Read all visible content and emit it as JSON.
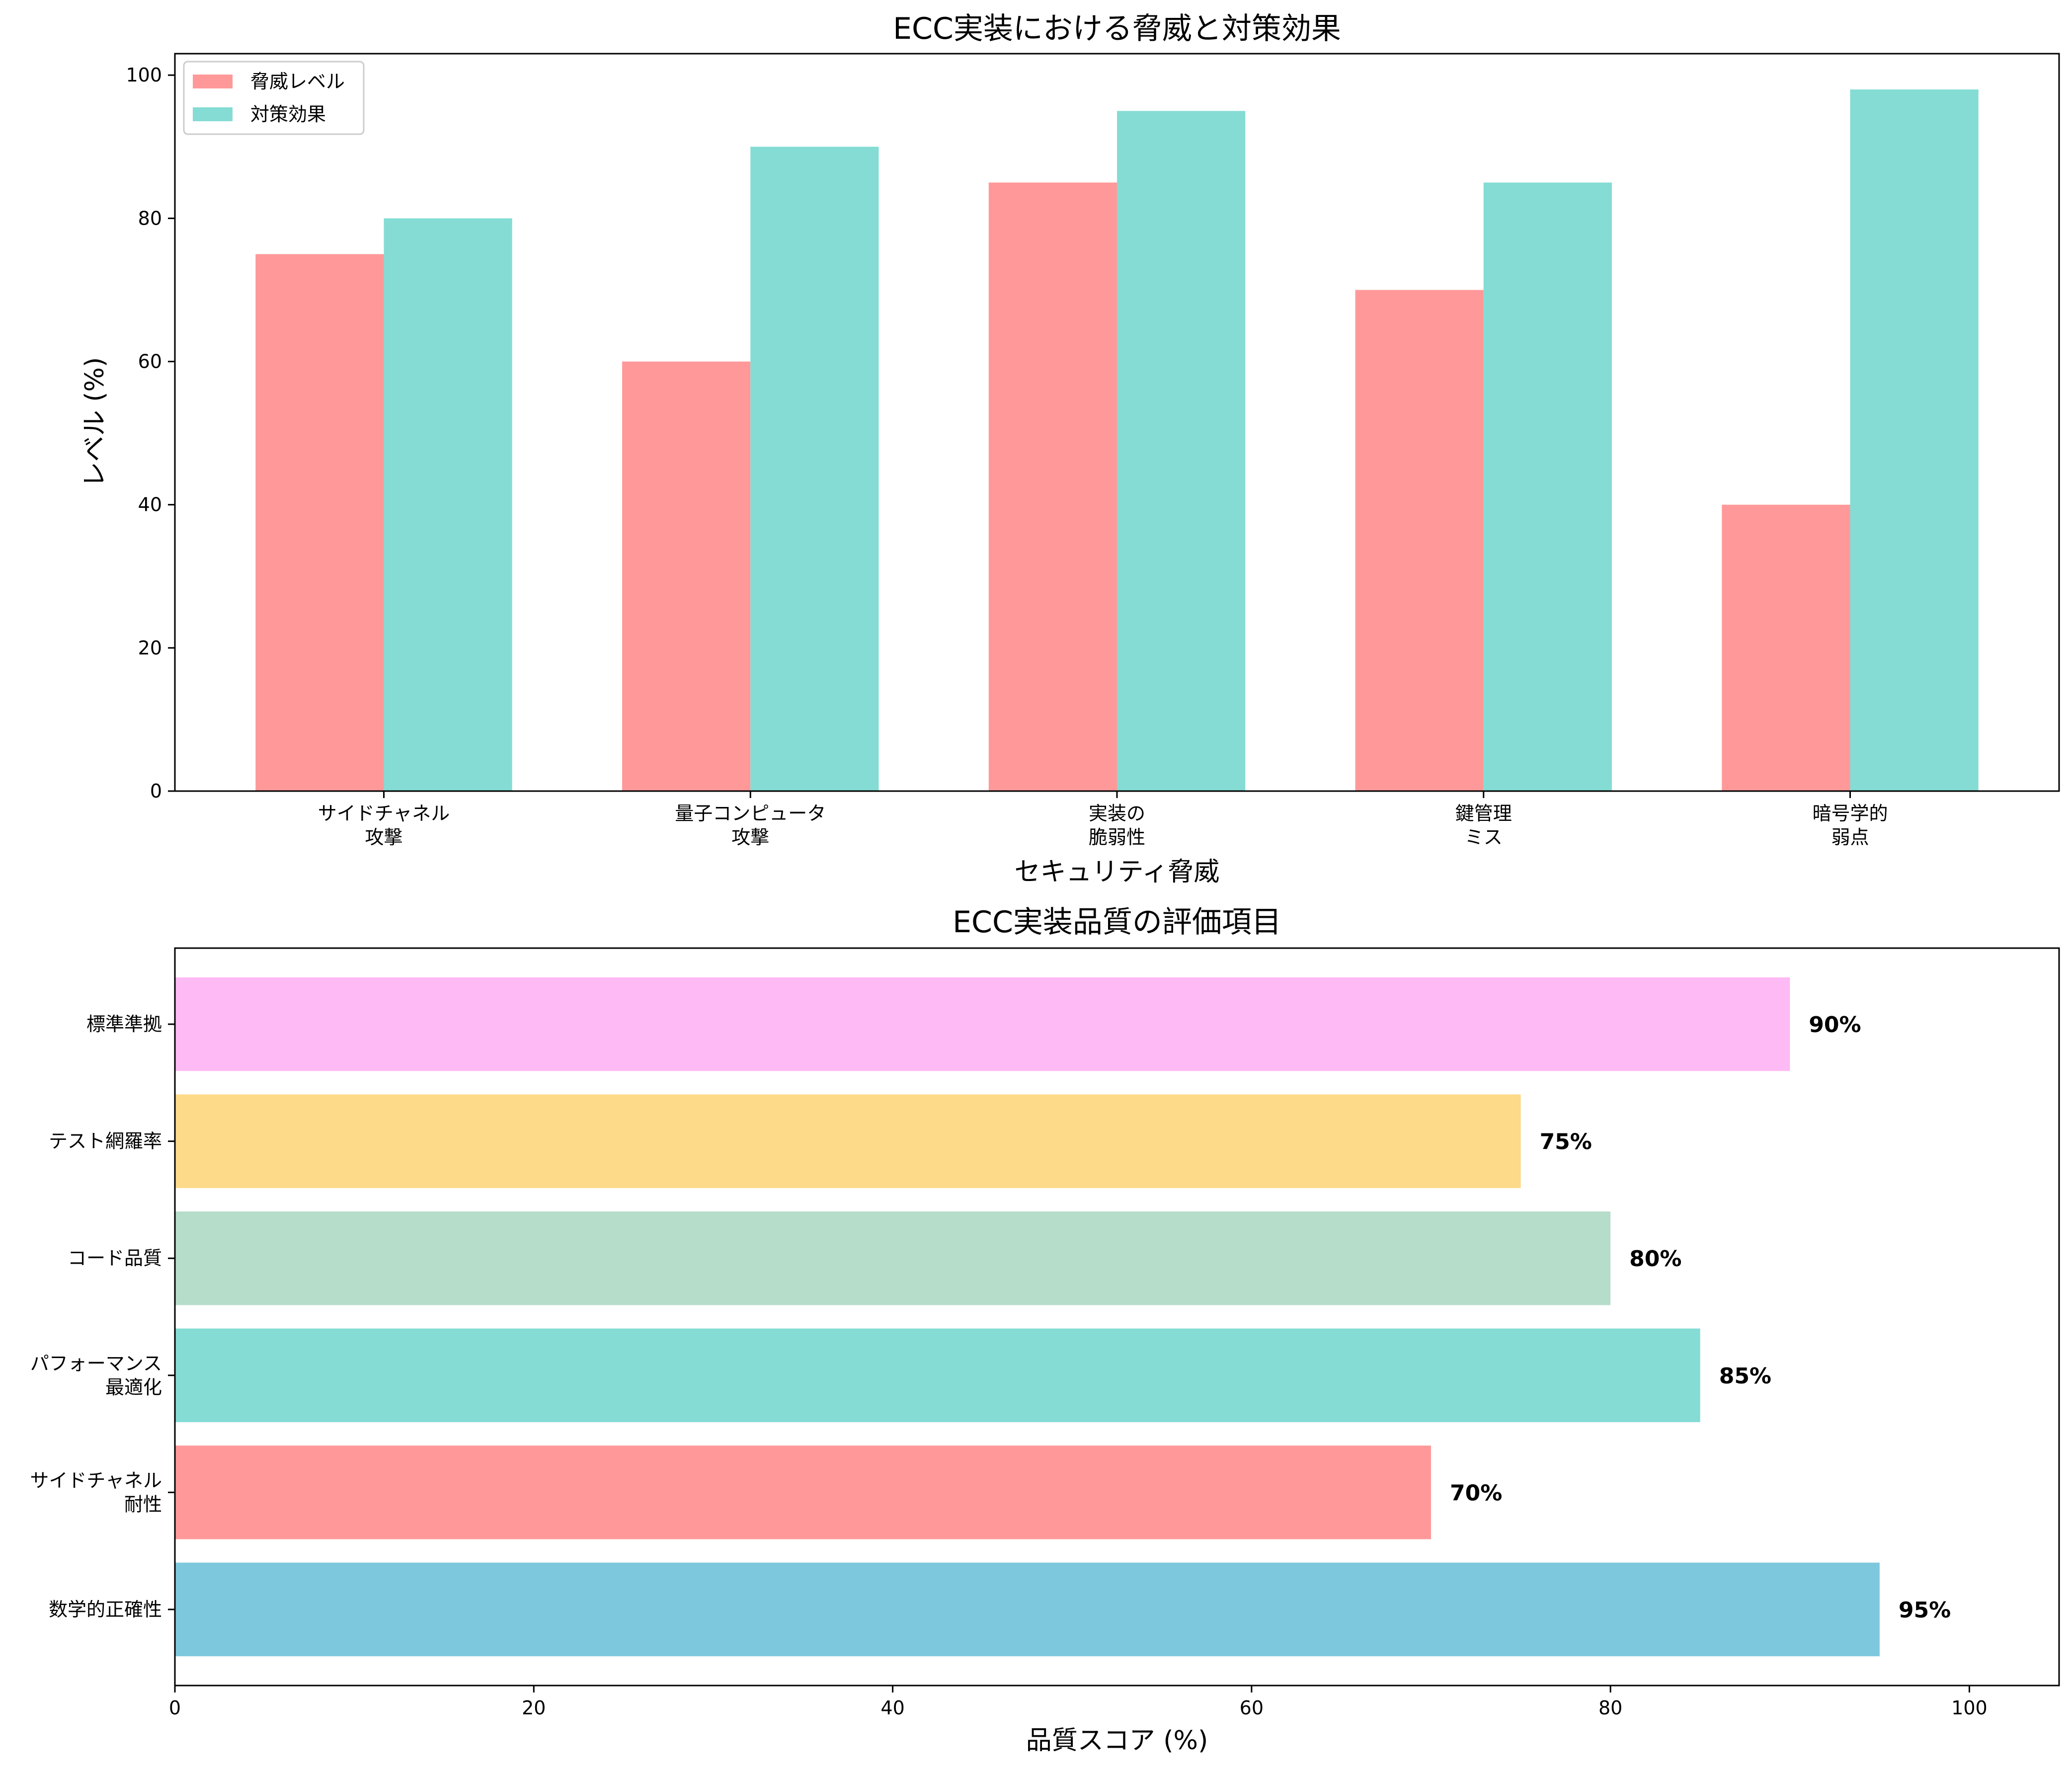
{
  "chart_data": [
    {
      "type": "bar",
      "title": "ECC実装における脅威と対策効果",
      "xlabel": "セキュリティ脅威",
      "ylabel": "レベル (%)",
      "categories": [
        "サイドチャネル\n攻撃",
        "量子コンピュータ\n攻撃",
        "実装の\n脆弱性",
        "鍵管理\nミス",
        "暗号学的\n弱点"
      ],
      "series": [
        {
          "name": "脅威レベル",
          "values": [
            75,
            60,
            85,
            70,
            40
          ],
          "color": "#ff9999"
        },
        {
          "name": "対策効果",
          "values": [
            80,
            90,
            95,
            85,
            98
          ],
          "color": "#84dcd4"
        }
      ],
      "ylim": [
        0,
        103
      ],
      "yticks": [
        0,
        20,
        40,
        60,
        80,
        100
      ],
      "grid": false,
      "legend": "top-left"
    },
    {
      "type": "bar",
      "orientation": "horizontal",
      "title": "ECC実装品質の評価項目",
      "xlabel": "品質スコア (%)",
      "ylabel": "",
      "categories": [
        "数学的正確性",
        "サイドチャネル\n耐性",
        "パフォーマンス\n最適化",
        "コード品質",
        "テスト網羅率",
        "標準準拠"
      ],
      "values": [
        95,
        70,
        85,
        80,
        75,
        90
      ],
      "value_labels": [
        "95%",
        "70%",
        "85%",
        "80%",
        "75%",
        "90%"
      ],
      "colors": [
        "#7ec8de",
        "#ff9999",
        "#84dcd4",
        "#b6dcca",
        "#fdd98a",
        "#fdbaf4"
      ],
      "xlim": [
        0,
        105
      ],
      "xticks": [
        0,
        20,
        40,
        60,
        80,
        100
      ],
      "grid": false
    }
  ]
}
